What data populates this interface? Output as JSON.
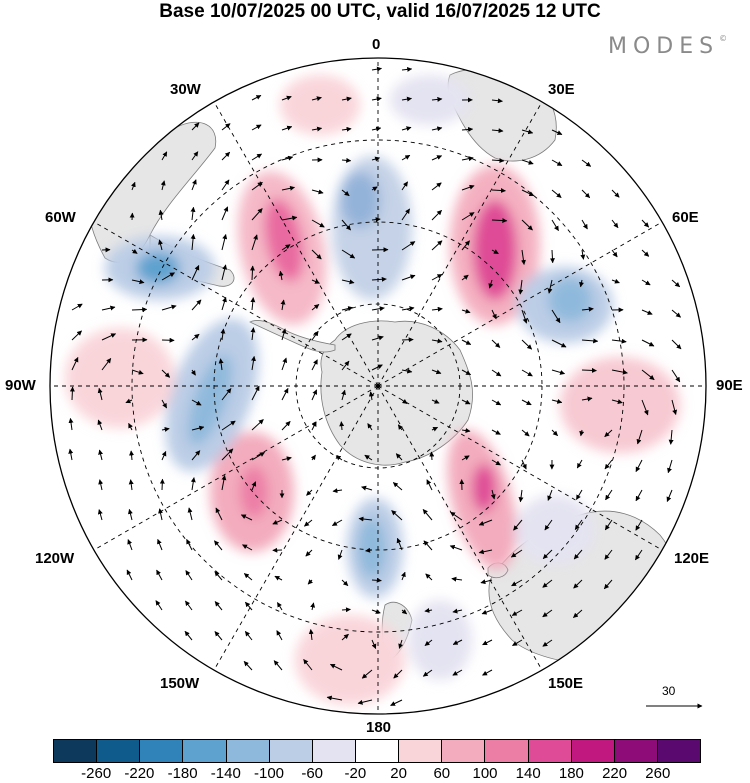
{
  "title": "Base 10/07/2025 00 UTC, valid 16/07/2025 12 UTC",
  "brand": "MODES",
  "brand_mark": "©",
  "reference_vector": "30",
  "longitude_labels": {
    "top": "0",
    "top_left": "30W",
    "top_right": "30E",
    "left_upper": "60W",
    "right_upper": "60E",
    "left": "90W",
    "right": "90E",
    "left_lower": "120W",
    "right_lower": "120E",
    "bottom_left": "150W",
    "bottom_right": "150E",
    "bottom": "180"
  },
  "colorbar": {
    "ticks": [
      "-260",
      "-220",
      "-180",
      "-140",
      "-100",
      "-60",
      "-20",
      "20",
      "60",
      "100",
      "140",
      "180",
      "220",
      "260"
    ],
    "colors": [
      "#0d3a5c",
      "#0e5b8c",
      "#2f83b8",
      "#5ea2cf",
      "#8fb9dc",
      "#bccde6",
      "#e4e3f1",
      "#ffffff",
      "#f9d5da",
      "#f3acbd",
      "#ec7ea6",
      "#df4b96",
      "#c0187f",
      "#8e0c78",
      "#5a0a6e"
    ]
  }
}
